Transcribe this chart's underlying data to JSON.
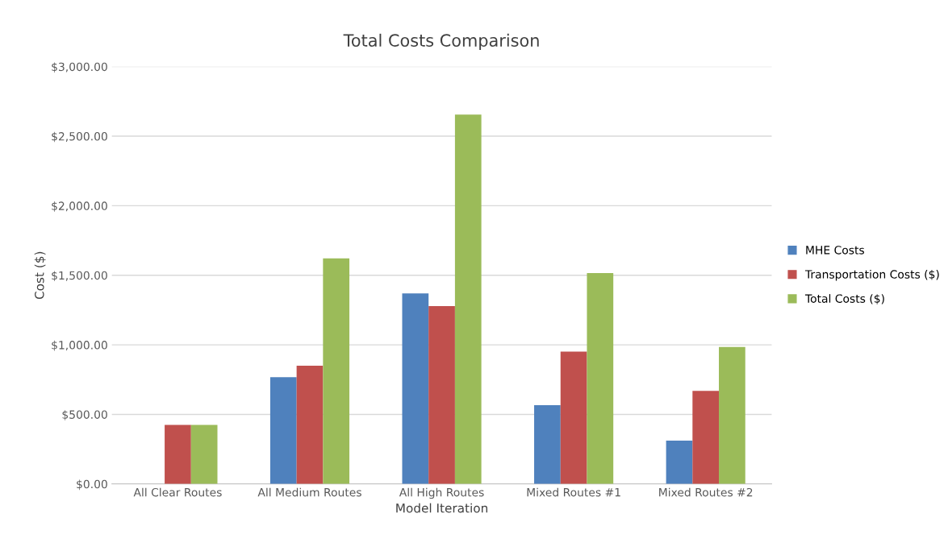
{
  "chart_data": {
    "type": "bar",
    "title": "Total Costs Comparison",
    "xlabel": "Model Iteration",
    "ylabel": "Cost ($)",
    "categories": [
      "All Clear Routes",
      "All Medium Routes",
      "All High Routes",
      "Mixed Routes #1",
      "Mixed Routes #2"
    ],
    "series": [
      {
        "name": "MHE Costs",
        "color": "#4f81bd",
        "values": [
          0,
          768,
          1370,
          566,
          311
        ]
      },
      {
        "name": "Transportation Costs ($)",
        "color": "#c0504d",
        "values": [
          425,
          850,
          1279,
          951,
          669
        ]
      },
      {
        "name": "Total Costs ($)",
        "color": "#9bbb59",
        "values": [
          425,
          1622,
          2655,
          1516,
          984
        ]
      }
    ],
    "ylim": [
      0,
      3000
    ],
    "yticks": [
      {
        "value": 0,
        "label": "$0.00"
      },
      {
        "value": 500,
        "label": "$500.00"
      },
      {
        "value": 1000,
        "label": "$1,000.00"
      },
      {
        "value": 1500,
        "label": "$1,500.00"
      },
      {
        "value": 2000,
        "label": "$2,000.00"
      },
      {
        "value": 2500,
        "label": "$2,500.00"
      },
      {
        "value": 3000,
        "label": "$3,000.00"
      }
    ],
    "grid": "y",
    "legend": "right"
  }
}
